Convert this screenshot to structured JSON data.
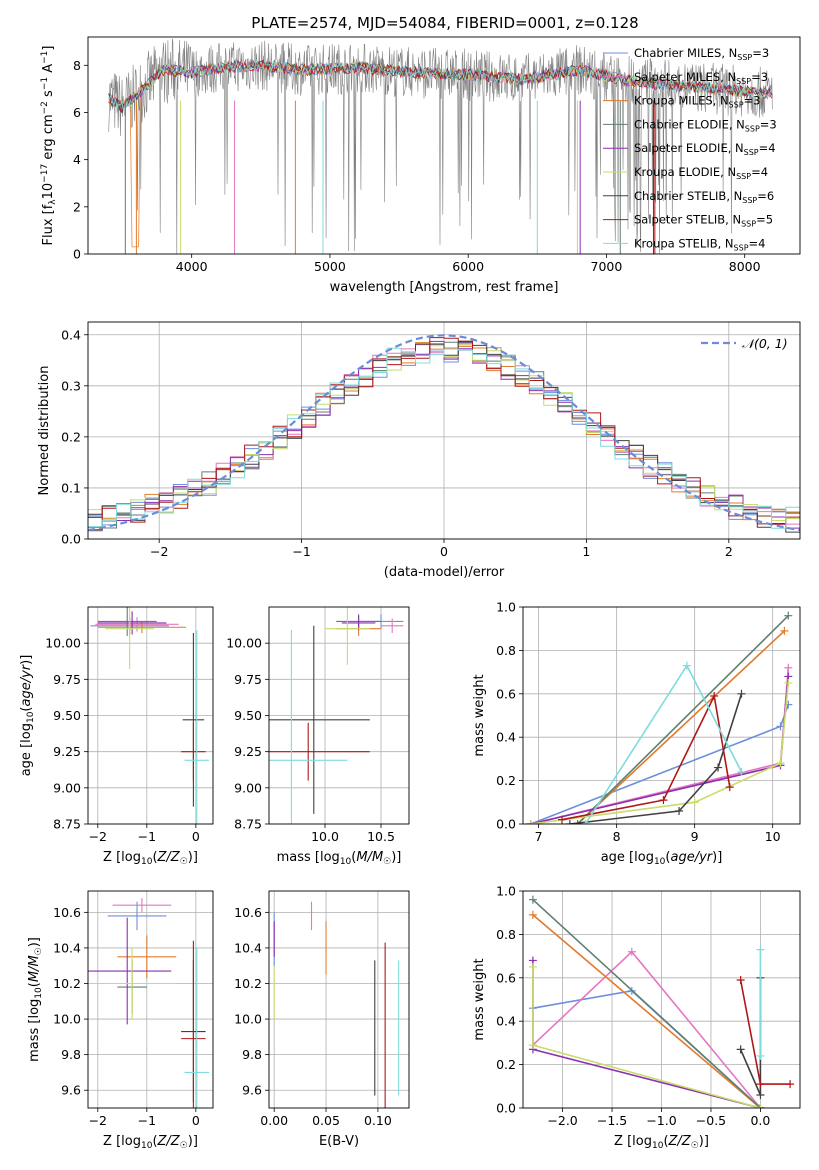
{
  "figure": {
    "title": "PLATE=2574, MJD=54084, FIBERID=0001, z=0.128"
  },
  "colors": {
    "data": "#808080",
    "models": [
      "#6f8fdc",
      "#e377c2",
      "#e07b2d",
      "#5f7f6f",
      "#8e2fb0",
      "#c8dc6a",
      "#404040",
      "#b01818",
      "#7fdcdc"
    ]
  },
  "chart_data": [
    {
      "id": "spectrum",
      "type": "line",
      "title": "PLATE=2574, MJD=54084, FIBERID=0001, z=0.128",
      "xlabel": "wavelength [Angstrom, rest frame]",
      "ylabel": "Flux [f_λ 10^-17 erg cm^-2 s^-1 A^-1]",
      "xlim": [
        3250,
        8400
      ],
      "ylim": [
        0,
        9.2
      ],
      "xticks": [
        "4000",
        "5000",
        "6000",
        "7000",
        "8000"
      ],
      "yticks": [
        "0",
        "2",
        "4",
        "6",
        "8"
      ],
      "legend": [
        {
          "label": "Chabrier MILES, N",
          "sub": "SSP",
          "suffix": "=3"
        },
        {
          "label": "Salpeter MILES, N",
          "sub": "SSP",
          "suffix": "=3"
        },
        {
          "label": "Kroupa MILES, N",
          "sub": "SSP",
          "suffix": "=3"
        },
        {
          "label": "Chabrier ELODIE, N",
          "sub": "SSP",
          "suffix": "=3"
        },
        {
          "label": "Salpeter ELODIE, N",
          "sub": "SSP",
          "suffix": "=4"
        },
        {
          "label": "Kroupa ELODIE, N",
          "sub": "SSP",
          "suffix": "=4"
        },
        {
          "label": "Chabrier STELIB, N",
          "sub": "SSP",
          "suffix": "=6"
        },
        {
          "label": "Salpeter STELIB, N",
          "sub": "SSP",
          "suffix": "=5"
        },
        {
          "label": "Kroupa STELIB, N",
          "sub": "SSP",
          "suffix": "=4"
        }
      ],
      "legend_placement": "right",
      "continuum": [
        [
          3400,
          6.6
        ],
        [
          3500,
          6.2
        ],
        [
          3650,
          7.0
        ],
        [
          3800,
          7.8
        ],
        [
          4000,
          7.7
        ],
        [
          4200,
          7.9
        ],
        [
          4500,
          8.0
        ],
        [
          4800,
          7.8
        ],
        [
          5200,
          7.9
        ],
        [
          5600,
          7.7
        ],
        [
          6000,
          7.6
        ],
        [
          6400,
          7.4
        ],
        [
          6800,
          7.8
        ],
        [
          7200,
          7.3
        ],
        [
          7600,
          7.1
        ],
        [
          8000,
          6.9
        ],
        [
          8200,
          6.8
        ]
      ],
      "grid": false
    },
    {
      "id": "residuals",
      "type": "line",
      "xlabel": "(data-model)/error",
      "ylabel": "Normed distribution",
      "xlim": [
        -2.5,
        2.5
      ],
      "ylim": [
        0,
        0.425
      ],
      "xticks": [
        "−2",
        "−1",
        "0",
        "1",
        "2"
      ],
      "yticks": [
        "0.0",
        "0.1",
        "0.2",
        "0.3",
        "0.4"
      ],
      "legend": "𝒩(0, 1)",
      "legend_placement": "top-right",
      "grid": true
    },
    {
      "id": "age-vs-Z",
      "type": "scatter",
      "xlabel": "Z [log10(Z/Z☉)]",
      "ylabel": "age [log10(age/yr)]",
      "xlim": [
        -2.2,
        0.35
      ],
      "ylim": [
        8.75,
        10.25
      ],
      "xticks": [
        "−2",
        "−1",
        "0"
      ],
      "yticks": [
        "8.75",
        "9.00",
        "9.25",
        "9.50",
        "9.75",
        "10.00"
      ],
      "points": [
        {
          "x": -1.35,
          "y": 10.12,
          "xerr": 0.8,
          "yerr": 0.06,
          "c": 0
        },
        {
          "x": -1.2,
          "y": 10.13,
          "xerr": 0.85,
          "yerr": 0.05,
          "c": 1
        },
        {
          "x": -1.1,
          "y": 10.11,
          "xerr": 0.9,
          "yerr": 0.04,
          "c": 2
        },
        {
          "x": -1.4,
          "y": 10.15,
          "xerr": 0.6,
          "yerr": 0.1,
          "c": 3
        },
        {
          "x": -1.3,
          "y": 10.14,
          "xerr": 0.7,
          "yerr": 0.08,
          "c": 4
        },
        {
          "x": -1.35,
          "y": 10.1,
          "xerr": 0.5,
          "yerr": 0.28,
          "c": 5
        },
        {
          "x": -0.05,
          "y": 9.47,
          "xerr": 0.22,
          "yerr": 0.6,
          "c": 6
        },
        {
          "x": -0.05,
          "y": 9.25,
          "xerr": 0.25,
          "yerr": 0.2,
          "c": 7
        },
        {
          "x": 0.02,
          "y": 9.19,
          "xerr": 0.25,
          "yerr": 0.9,
          "c": 8
        }
      ],
      "grid": true
    },
    {
      "id": "age-vs-mass",
      "type": "scatter",
      "xlabel": "mass [log10(M/M☉)]",
      "ylabel": "",
      "xlim": [
        9.5,
        10.75
      ],
      "ylim": [
        8.75,
        10.25
      ],
      "xticks": [
        "10.0",
        "10.5"
      ],
      "yticks": [
        "8.75",
        "9.00",
        "9.25",
        "9.50",
        "9.75",
        "10.00"
      ],
      "points": [
        {
          "x": 10.5,
          "y": 10.15,
          "xerr": 0.2,
          "yerr": 0.05,
          "c": 0
        },
        {
          "x": 10.6,
          "y": 10.12,
          "xerr": 0.1,
          "yerr": 0.05,
          "c": 1
        },
        {
          "x": 10.3,
          "y": 10.1,
          "xerr": 0.2,
          "yerr": 0.05,
          "c": 2
        },
        {
          "x": 10.3,
          "y": 10.15,
          "xerr": 0.2,
          "yerr": 0.05,
          "c": 3
        },
        {
          "x": 10.3,
          "y": 10.14,
          "xerr": 0.15,
          "yerr": 0.05,
          "c": 4
        },
        {
          "x": 10.2,
          "y": 10.1,
          "xerr": 0.2,
          "yerr": 0.25,
          "c": 5
        },
        {
          "x": 9.9,
          "y": 9.47,
          "xerr": 0.5,
          "yerr": 0.65,
          "c": 6
        },
        {
          "x": 9.85,
          "y": 9.25,
          "xerr": 0.55,
          "yerr": 0.2,
          "c": 7
        },
        {
          "x": 9.7,
          "y": 9.19,
          "xerr": 0.5,
          "yerr": 0.9,
          "c": 8
        }
      ],
      "grid": true
    },
    {
      "id": "massweight-vs-age",
      "type": "line",
      "xlabel": "age [log10(age/yr)]",
      "ylabel": "mass weight",
      "xlim": [
        6.8,
        10.35
      ],
      "ylim": [
        0,
        1.0
      ],
      "xticks": [
        "7",
        "8",
        "9",
        "10"
      ],
      "yticks": [
        "0.0",
        "0.2",
        "0.4",
        "0.6",
        "0.8",
        "1.0"
      ],
      "series": [
        {
          "c": 0,
          "x": [
            6.9,
            10.1,
            10.2
          ],
          "y": [
            0.0,
            0.45,
            0.55
          ]
        },
        {
          "c": 1,
          "x": [
            6.9,
            10.1,
            10.2
          ],
          "y": [
            0.0,
            0.28,
            0.72
          ]
        },
        {
          "c": 2,
          "x": [
            7.5,
            10.15
          ],
          "y": [
            0.0,
            0.89
          ]
        },
        {
          "c": 3,
          "x": [
            7.5,
            10.2
          ],
          "y": [
            0.0,
            0.96
          ]
        },
        {
          "c": 4,
          "x": [
            6.9,
            10.1,
            10.2
          ],
          "y": [
            0.0,
            0.27,
            0.68
          ]
        },
        {
          "c": 5,
          "x": [
            6.9,
            9.0,
            10.1,
            10.2
          ],
          "y": [
            0.0,
            0.1,
            0.28,
            0.65
          ]
        },
        {
          "c": 6,
          "x": [
            7.4,
            8.8,
            9.3,
            9.6
          ],
          "y": [
            0.0,
            0.06,
            0.26,
            0.6
          ]
        },
        {
          "c": 7,
          "x": [
            7.3,
            8.6,
            9.25,
            9.45
          ],
          "y": [
            0.02,
            0.11,
            0.59,
            0.17
          ]
        },
        {
          "c": 8,
          "x": [
            7.6,
            8.9,
            9.6
          ],
          "y": [
            0.0,
            0.73,
            0.24
          ]
        }
      ],
      "grid": true
    },
    {
      "id": "mass-vs-Z",
      "type": "scatter",
      "xlabel": "Z [log10(Z/Z☉)]",
      "ylabel": "mass [log10(M/M☉)]",
      "xlim": [
        -2.2,
        0.35
      ],
      "ylim": [
        9.5,
        10.72
      ],
      "xticks": [
        "−2",
        "−1",
        "0"
      ],
      "yticks": [
        "9.6",
        "9.8",
        "10.0",
        "10.2",
        "10.4",
        "10.6"
      ],
      "points": [
        {
          "x": -1.2,
          "y": 10.58,
          "xerr": 0.6,
          "yerr": 0.08,
          "c": 0
        },
        {
          "x": -1.1,
          "y": 10.64,
          "xerr": 0.6,
          "yerr": 0.04,
          "c": 1
        },
        {
          "x": -1.0,
          "y": 10.35,
          "xerr": 0.6,
          "yerr": 0.12,
          "c": 2
        },
        {
          "x": -1.3,
          "y": 10.18,
          "xerr": 0.3,
          "yerr": 0.15,
          "c": 3
        },
        {
          "x": -1.4,
          "y": 10.27,
          "xerr": 0.9,
          "yerr": 0.3,
          "c": 4
        },
        {
          "x": -1.3,
          "y": 10.2,
          "xerr": 0.9,
          "yerr": 0.2,
          "c": 5
        },
        {
          "x": -0.05,
          "y": 9.93,
          "xerr": 0.25,
          "yerr": 0.4,
          "c": 6
        },
        {
          "x": -0.05,
          "y": 9.89,
          "xerr": 0.25,
          "yerr": 0.55,
          "c": 7
        },
        {
          "x": 0.02,
          "y": 9.7,
          "xerr": 0.25,
          "yerr": 0.7,
          "c": 8
        }
      ],
      "grid": true
    },
    {
      "id": "mass-vs-EBV",
      "type": "scatter",
      "xlabel": "E(B-V)",
      "ylabel": "",
      "xlim": [
        -0.005,
        0.13
      ],
      "ylim": [
        9.5,
        10.72
      ],
      "xticks": [
        "0.00",
        "0.05",
        "0.10"
      ],
      "yticks": [
        "9.6",
        "9.8",
        "10.0",
        "10.2",
        "10.4",
        "10.6"
      ],
      "points": [
        {
          "x": 0.0,
          "y": 10.45,
          "yerr": 0.15,
          "c": 0
        },
        {
          "x": 0.036,
          "y": 10.58,
          "yerr": 0.08,
          "c": 1
        },
        {
          "x": 0.05,
          "y": 10.4,
          "yerr": 0.15,
          "c": 2
        },
        {
          "x": 0.0,
          "y": 10.45,
          "yerr": 0.1,
          "c": 4
        },
        {
          "x": 0.0,
          "y": 10.15,
          "yerr": 0.15,
          "c": 5
        },
        {
          "x": 0.097,
          "y": 9.95,
          "yerr": 0.38,
          "c": 6
        },
        {
          "x": 0.107,
          "y": 9.95,
          "yerr": 0.48,
          "c": 7
        },
        {
          "x": 0.12,
          "y": 9.95,
          "yerr": 0.38,
          "c": 8
        }
      ],
      "grid": true
    },
    {
      "id": "massweight-vs-Z",
      "type": "line",
      "xlabel": "Z [log10(Z/Z☉)]",
      "ylabel": "mass weight",
      "xlim": [
        -2.4,
        0.4
      ],
      "ylim": [
        0,
        1.0
      ],
      "xticks": [
        "−2.0",
        "−1.5",
        "−1.0",
        "−0.5",
        "0.0"
      ],
      "yticks": [
        "0.0",
        "0.2",
        "0.4",
        "0.6",
        "0.8",
        "1.0"
      ],
      "series": [
        {
          "c": 0,
          "x": [
            -2.3,
            -1.3,
            0.0
          ],
          "y": [
            0.46,
            0.54,
            0.0
          ]
        },
        {
          "c": 1,
          "x": [
            -2.3,
            -1.3,
            0.0
          ],
          "y": [
            0.29,
            0.72,
            0.0
          ]
        },
        {
          "c": 2,
          "x": [
            -2.3,
            0.0
          ],
          "y": [
            0.89,
            0.0
          ]
        },
        {
          "c": 3,
          "x": [
            -2.3,
            0.0
          ],
          "y": [
            0.96,
            0.0
          ]
        },
        {
          "c": 4,
          "x": [
            -2.3,
            -2.3,
            0.0
          ],
          "y": [
            0.68,
            0.27,
            0.0
          ]
        },
        {
          "c": 5,
          "x": [
            -2.3,
            -2.3,
            0.0
          ],
          "y": [
            0.65,
            0.29,
            0.0
          ]
        },
        {
          "c": 6,
          "x": [
            -0.2,
            0.0,
            0.0
          ],
          "y": [
            0.27,
            0.06,
            0.6
          ]
        },
        {
          "c": 7,
          "x": [
            -0.2,
            0.0,
            0.3
          ],
          "y": [
            0.59,
            0.11,
            0.11
          ]
        },
        {
          "c": 8,
          "x": [
            0.0,
            0.0
          ],
          "y": [
            0.73,
            0.24
          ]
        }
      ],
      "grid": true
    }
  ]
}
